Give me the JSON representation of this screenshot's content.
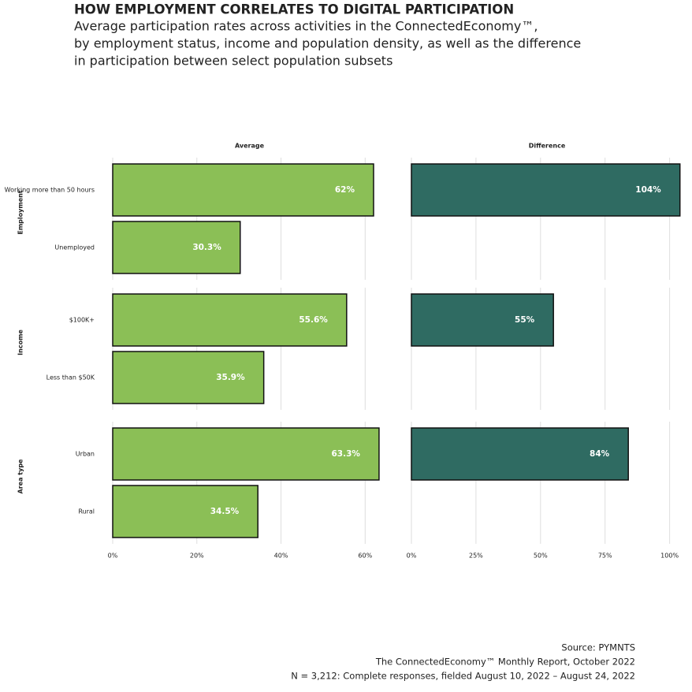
{
  "header": {
    "title": "HOW EMPLOYMENT CORRELATES TO DIGITAL PARTICIPATION",
    "subtitle": [
      "Average participation rates across activities in the ConnectedEconomy™,",
      "by employment status, income and population density, as well as the difference",
      "in participation between select population subsets"
    ]
  },
  "chart_data": [
    {
      "type": "bar",
      "orientation": "horizontal",
      "title": "Average",
      "color": "#8bbf56",
      "xlim": [
        0,
        65
      ],
      "xticks": [
        {
          "value": 0,
          "label": "0%"
        },
        {
          "value": 20,
          "label": "20%"
        },
        {
          "value": 40,
          "label": "40%"
        },
        {
          "value": 60,
          "label": "60%"
        }
      ],
      "grid": true,
      "facets": [
        {
          "name": "Employment",
          "categories": [
            "Working more than 50 hours",
            "Unemployed"
          ],
          "values": [
            62,
            30.3
          ],
          "value_labels": [
            "62%",
            "30.3%"
          ]
        },
        {
          "name": "Income",
          "categories": [
            "$100K+",
            "Less than $50K"
          ],
          "values": [
            55.6,
            35.9
          ],
          "value_labels": [
            "55.6%",
            "35.9%"
          ]
        },
        {
          "name": "Area type",
          "categories": [
            "Urban",
            "Rural"
          ],
          "values": [
            63.3,
            34.5
          ],
          "value_labels": [
            "63.3%",
            "34.5%"
          ]
        }
      ]
    },
    {
      "type": "bar",
      "orientation": "horizontal",
      "title": "Difference",
      "color": "#2f6b62",
      "xlim": [
        0,
        105
      ],
      "xticks": [
        {
          "value": 0,
          "label": "0%"
        },
        {
          "value": 25,
          "label": "25%"
        },
        {
          "value": 50,
          "label": "50%"
        },
        {
          "value": 75,
          "label": "75%"
        },
        {
          "value": 100,
          "label": "100%"
        }
      ],
      "grid": true,
      "facets": [
        {
          "values": [
            104,
            null
          ],
          "value_labels": [
            "104%",
            null
          ]
        },
        {
          "values": [
            55,
            null
          ],
          "value_labels": [
            "55%",
            null
          ]
        },
        {
          "values": [
            84,
            null
          ],
          "value_labels": [
            "84%",
            null
          ]
        }
      ]
    }
  ],
  "footer": [
    "Source: PYMNTS",
    "The ConnectedEconomy™ Monthly Report, October 2022",
    "N = 3,212: Complete responses, fielded August 10, 2022 – August 24, 2022"
  ]
}
